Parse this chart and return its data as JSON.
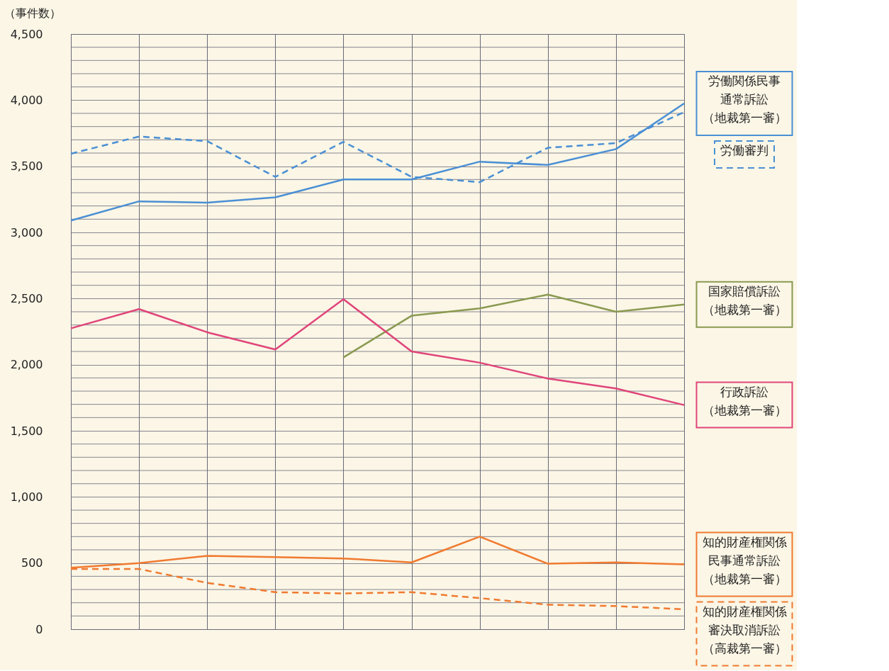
{
  "chart_data": {
    "type": "line",
    "ylabel": "（事件数）",
    "categories": [
      null,
      null,
      null,
      null,
      null,
      null,
      null,
      null,
      null,
      null
    ],
    "ylim": [
      0,
      4500
    ],
    "yticks": [
      0,
      {
        "value": 100,
        "label": null
      },
      {
        "value": 200,
        "label": null
      },
      {
        "value": 300,
        "label": null
      },
      {
        "value": 400,
        "label": null
      },
      {
        "value": 500,
        "label": "500"
      },
      {
        "value": 600,
        "label": null
      },
      {
        "value": 700,
        "label": null
      },
      {
        "value": 800,
        "label": null
      },
      {
        "value": 900,
        "label": null
      },
      {
        "value": 1000,
        "label": "1,000"
      },
      {
        "value": 1100,
        "label": null
      },
      {
        "value": 1200,
        "label": null
      },
      {
        "value": 1300,
        "label": null
      },
      {
        "value": 1400,
        "label": null
      },
      {
        "value": 1500,
        "label": "1,500"
      },
      {
        "value": 1600,
        "label": null
      },
      {
        "value": 1700,
        "label": null
      },
      {
        "value": 1800,
        "label": null
      },
      {
        "value": 1900,
        "label": null
      },
      {
        "value": 2000,
        "label": "2,000"
      },
      {
        "value": 2100,
        "label": null
      },
      {
        "value": 2200,
        "label": null
      },
      {
        "value": 2300,
        "label": null
      },
      {
        "value": 2400,
        "label": null
      },
      {
        "value": 2500,
        "label": "2,500"
      },
      {
        "value": 2600,
        "label": null
      },
      {
        "value": 2700,
        "label": null
      },
      {
        "value": 2800,
        "label": null
      },
      {
        "value": 2900,
        "label": null
      },
      {
        "value": 3000,
        "label": "3,000"
      },
      {
        "value": 3100,
        "label": null
      },
      {
        "value": 3200,
        "label": null
      },
      {
        "value": 3300,
        "label": null
      },
      {
        "value": 3400,
        "label": null
      },
      {
        "value": 3500,
        "label": "3,500"
      },
      {
        "value": 3600,
        "label": null
      },
      {
        "value": 3700,
        "label": null
      },
      {
        "value": 3800,
        "label": null
      },
      {
        "value": 3900,
        "label": null
      },
      {
        "value": 4000,
        "label": "4,000"
      },
      {
        "value": 4100,
        "label": null
      },
      {
        "value": 4200,
        "label": null
      },
      {
        "value": 4300,
        "label": null
      },
      {
        "value": 4400,
        "label": null
      },
      {
        "value": 4500,
        "label": "4,500"
      }
    ],
    "grid": true,
    "tick_labels": "y",
    "series": [
      {
        "name": "労働関係民事通常訴訟（地裁第一審）",
        "color": "#4a8fd4",
        "line_style": "solid",
        "values": [
          3090,
          3235,
          3225,
          3265,
          3400,
          3400,
          3535,
          3510,
          3630,
          3975
        ]
      },
      {
        "name": "労働審判",
        "color": "#4a8fd4",
        "line_style": "dashed",
        "values": [
          3595,
          3725,
          3690,
          3420,
          3685,
          3420,
          3380,
          3640,
          3675,
          3910
        ]
      },
      {
        "name": "国家賠償訴訟（地裁第一審）",
        "color": "#8a9a50",
        "line_style": "solid",
        "values": [
          null,
          null,
          null,
          null,
          2055,
          2370,
          2425,
          2530,
          2400,
          2455
        ]
      },
      {
        "name": "行政訴訟（地裁第一審）",
        "color": "#e0457a",
        "line_style": "solid",
        "values": [
          2275,
          2420,
          2245,
          2115,
          2495,
          2100,
          2015,
          1895,
          1820,
          1695
        ]
      },
      {
        "name": "知的財産権関係民事通常訴訟（地裁第一審）",
        "color": "#f07a30",
        "line_style": "solid",
        "values": [
          465,
          500,
          555,
          545,
          535,
          505,
          700,
          495,
          505,
          490
        ]
      },
      {
        "name": "知的財産権関係審決取消訴訟（高裁第一審）",
        "color": "#f07a30",
        "line_style": "dashed",
        "values": [
          455,
          455,
          350,
          280,
          270,
          280,
          235,
          185,
          175,
          150
        ]
      }
    ]
  }
}
